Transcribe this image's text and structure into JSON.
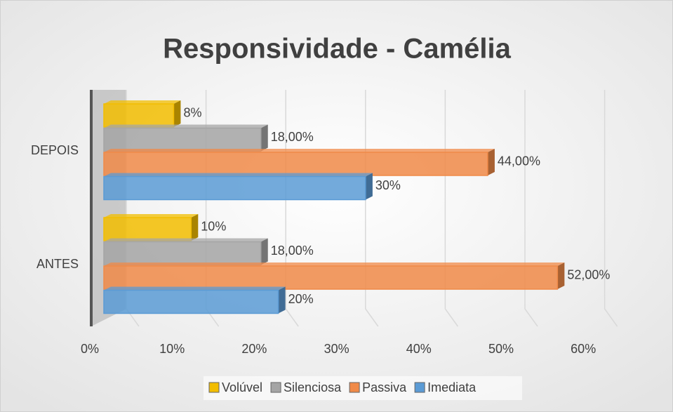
{
  "chart_data": {
    "type": "bar3d_horizontal",
    "title": "Responsividade - Camélia",
    "categories": [
      "DEPOIS",
      "ANTES"
    ],
    "series": [
      {
        "name": "Volúvel",
        "color": "#f2bd00",
        "values": [
          8,
          10
        ],
        "value_labels": [
          "8%",
          "10%"
        ]
      },
      {
        "name": "Silenciosa",
        "color": "#a5a5a5",
        "values": [
          18,
          18
        ],
        "value_labels": [
          "18,00%",
          "18,00%"
        ]
      },
      {
        "name": "Passiva",
        "color": "#f08a48",
        "values": [
          44,
          52
        ],
        "value_labels": [
          "44,00%",
          "52,00%"
        ]
      },
      {
        "name": "Imediata",
        "color": "#5b9bd5",
        "values": [
          30,
          20
        ],
        "value_labels": [
          "30%",
          "20%"
        ]
      }
    ],
    "xlim": [
      0,
      60
    ],
    "xticks": [
      {
        "value": 0,
        "label": "0%"
      },
      {
        "value": 10,
        "label": "10%"
      },
      {
        "value": 20,
        "label": "20%"
      },
      {
        "value": 30,
        "label": "30%"
      },
      {
        "value": 40,
        "label": "40%"
      },
      {
        "value": 50,
        "label": "50%"
      },
      {
        "value": 60,
        "label": "60%"
      }
    ],
    "grid": true,
    "legend": "bottom"
  }
}
